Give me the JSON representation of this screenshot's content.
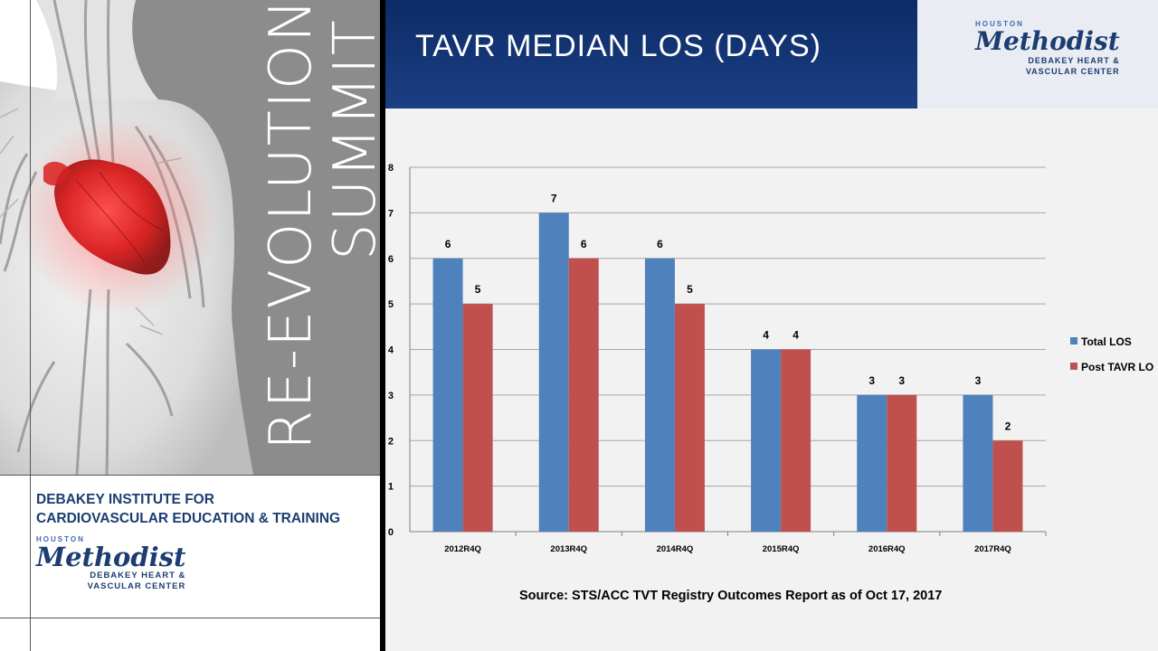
{
  "left_panel": {
    "summit_title": {
      "line1": "RE-EVOLUTION",
      "line2": "SUMMIT"
    },
    "institute": {
      "line1": "DEBAKEY INSTITUTE FOR",
      "line2": "CARDIOVASCULAR EDUCATION & TRAINING"
    },
    "logo": {
      "houston": "HOUSTON",
      "name": "Methodist",
      "sub1": "DEBAKEY HEART &",
      "sub2": "VASCULAR CENTER"
    }
  },
  "slide": {
    "title": "TAVR MEDIAN LOS (DAYS)",
    "header_logo": {
      "houston": "HOUSTON",
      "name": "Methodist",
      "sub1": "DEBAKEY HEART &",
      "sub2": "VASCULAR CENTER"
    },
    "source": "Source:  STS/ACC TVT Registry Outcomes Report as of Oct 17, 2017"
  },
  "chart_data": {
    "type": "bar",
    "title": "TAVR MEDIAN LOS (DAYS)",
    "categories": [
      "2012R4Q",
      "2013R4Q",
      "2014R4Q",
      "2015R4Q",
      "2016R4Q",
      "2017R4Q"
    ],
    "series": [
      {
        "name": "Total LOS",
        "values": [
          6,
          7,
          6,
          4,
          3,
          3
        ],
        "color": "#4f81bd"
      },
      {
        "name": "Post TAVR LO",
        "values": [
          5,
          6,
          5,
          4,
          3,
          2
        ],
        "color": "#c0504d"
      }
    ],
    "ylim": [
      0,
      8
    ],
    "yticks": [
      "0",
      "1",
      "2",
      "3",
      "4",
      "5",
      "6",
      "7",
      "8"
    ],
    "grid": true,
    "legend": "right"
  }
}
